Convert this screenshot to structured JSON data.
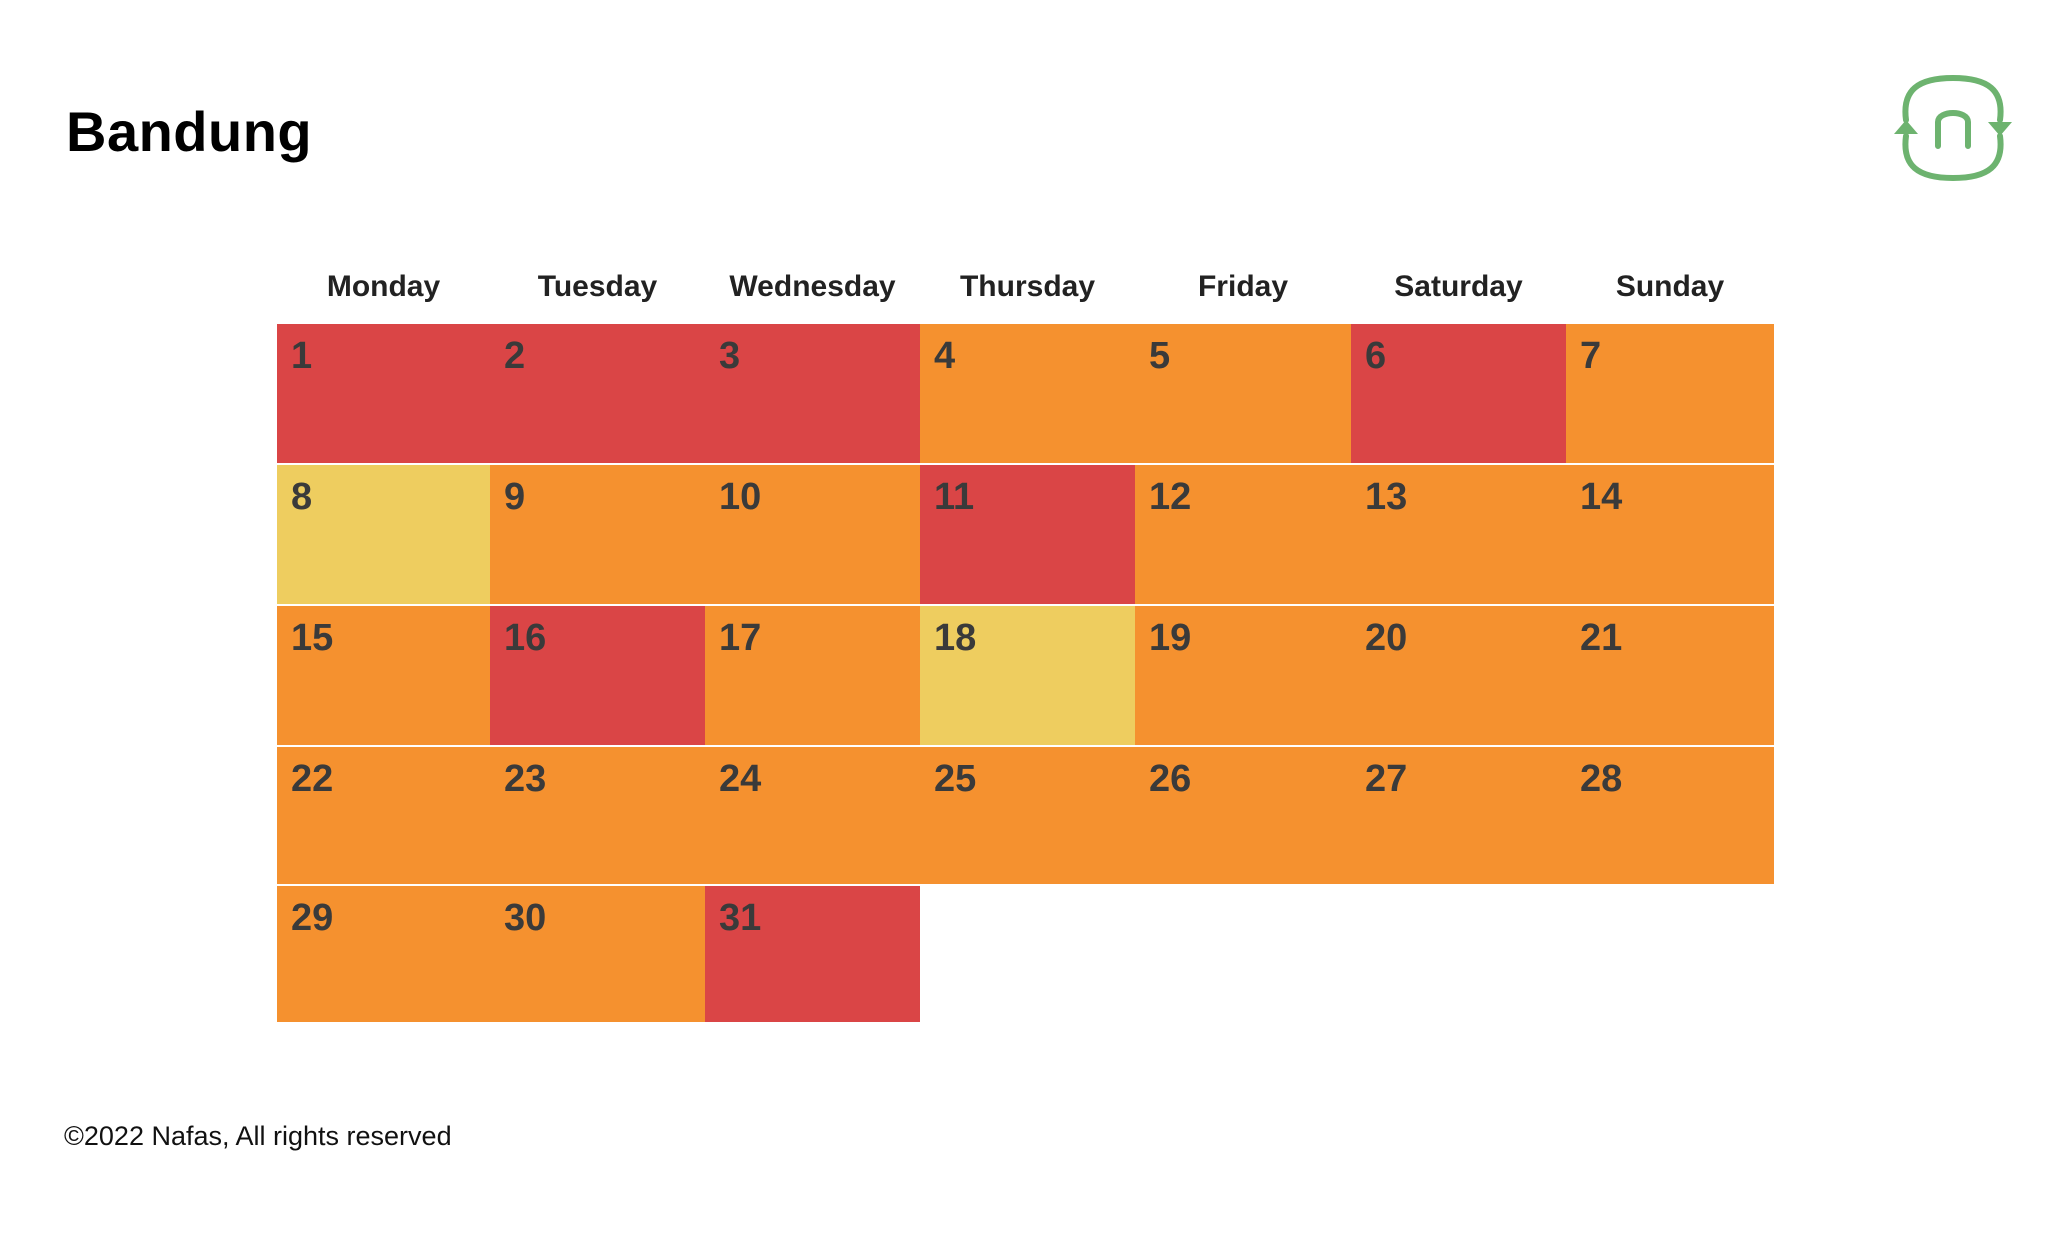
{
  "page": {
    "title": "Bandung",
    "footer": "©2022 Nafas, All rights reserved"
  },
  "logo": {
    "icon": "nafas-logo-icon",
    "color": "#6db36f"
  },
  "chart_data": {
    "type": "heatmap",
    "title": "Bandung",
    "weekdays": [
      "Monday",
      "Tuesday",
      "Wednesday",
      "Thursday",
      "Friday",
      "Saturday",
      "Sunday"
    ],
    "first_day_column": 0,
    "days": [
      {
        "day": 1,
        "level": "red"
      },
      {
        "day": 2,
        "level": "red"
      },
      {
        "day": 3,
        "level": "red"
      },
      {
        "day": 4,
        "level": "orange"
      },
      {
        "day": 5,
        "level": "orange"
      },
      {
        "day": 6,
        "level": "red"
      },
      {
        "day": 7,
        "level": "orange"
      },
      {
        "day": 8,
        "level": "yellow"
      },
      {
        "day": 9,
        "level": "orange"
      },
      {
        "day": 10,
        "level": "orange"
      },
      {
        "day": 11,
        "level": "red"
      },
      {
        "day": 12,
        "level": "orange"
      },
      {
        "day": 13,
        "level": "orange"
      },
      {
        "day": 14,
        "level": "orange"
      },
      {
        "day": 15,
        "level": "orange"
      },
      {
        "day": 16,
        "level": "red"
      },
      {
        "day": 17,
        "level": "orange"
      },
      {
        "day": 18,
        "level": "yellow"
      },
      {
        "day": 19,
        "level": "orange"
      },
      {
        "day": 20,
        "level": "orange"
      },
      {
        "day": 21,
        "level": "orange"
      },
      {
        "day": 22,
        "level": "orange"
      },
      {
        "day": 23,
        "level": "orange"
      },
      {
        "day": 24,
        "level": "orange"
      },
      {
        "day": 25,
        "level": "orange"
      },
      {
        "day": 26,
        "level": "orange"
      },
      {
        "day": 27,
        "level": "orange"
      },
      {
        "day": 28,
        "level": "orange"
      },
      {
        "day": 29,
        "level": "orange"
      },
      {
        "day": 30,
        "level": "orange"
      },
      {
        "day": 31,
        "level": "red"
      }
    ],
    "level_colors": {
      "red": "#da4546",
      "orange": "#f5912f",
      "yellow": "#eecd5f"
    }
  }
}
